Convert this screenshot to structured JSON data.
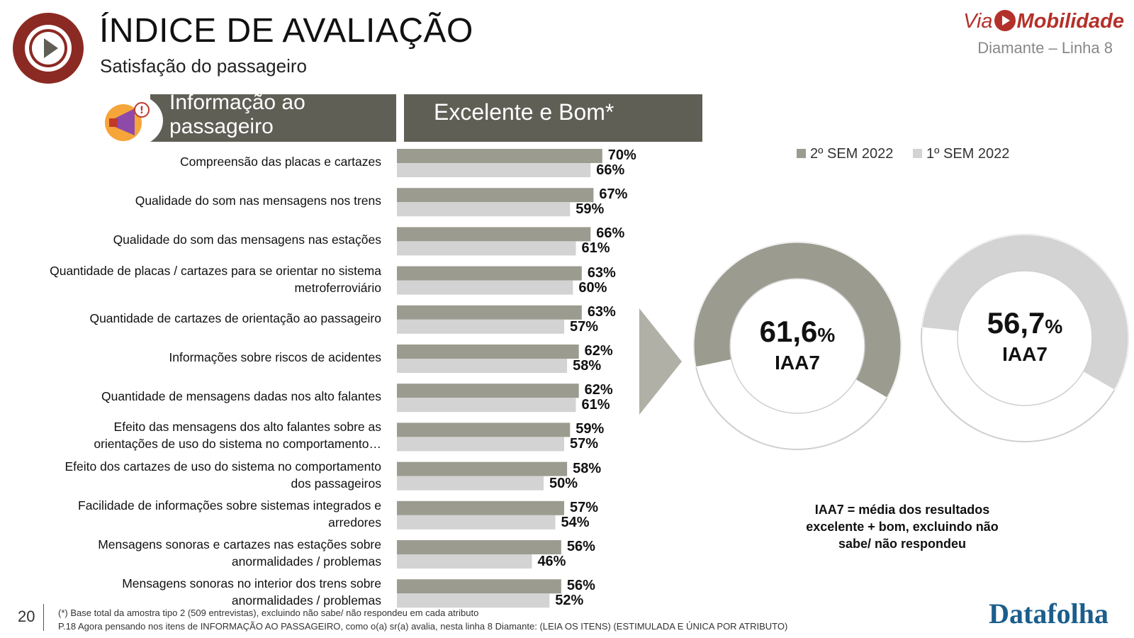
{
  "header": {
    "title": "ÍNDICE DE AVALIAÇÃO",
    "subtitle": "Satisfação do passageiro",
    "brand_prefix": "Via",
    "brand_name": "Mobilidade",
    "line_name": "Diamante – Linha 8"
  },
  "section": {
    "topic": "Informação ao passageiro",
    "measure": "Excelente e Bom*"
  },
  "legend": {
    "current": "2º SEM 2022",
    "previous": "1º SEM 2022"
  },
  "colors": {
    "current": "#9b9b8f",
    "previous": "#d3d3d3",
    "header_bg": "#5f5f56",
    "brand_red": "#b4302a"
  },
  "chart_data": [
    {
      "type": "bar",
      "orientation": "horizontal",
      "categories": [
        "Compreensão das placas e cartazes",
        "Qualidade do som nas mensagens nos trens",
        "Qualidade do som das mensagens nas estações",
        "Quantidade de placas / cartazes para se orientar no sistema metroferroviário",
        "Quantidade de cartazes de orientação ao passageiro",
        "Informações sobre riscos de acidentes",
        "Quantidade de mensagens dadas nos alto falantes",
        "Efeito das mensagens dos alto falantes sobre as orientações de uso do sistema no comportamento…",
        "Efeito dos cartazes de uso do sistema no comportamento dos passageiros",
        "Facilidade de informações sobre sistemas integrados e arredores",
        "Mensagens sonoras e cartazes nas estações sobre anormalidades / problemas",
        "Mensagens sonoras no interior dos trens sobre anormalidades / problemas"
      ],
      "series": [
        {
          "name": "2º SEM 2022",
          "values": [
            70,
            67,
            66,
            63,
            63,
            62,
            62,
            59,
            58,
            57,
            56,
            56
          ]
        },
        {
          "name": "1º SEM 2022",
          "values": [
            66,
            59,
            61,
            60,
            57,
            58,
            61,
            57,
            50,
            54,
            46,
            52
          ]
        }
      ],
      "value_labels": {
        "current": [
          "70%",
          "67%",
          "66%",
          "63%",
          "63%",
          "62%",
          "62%",
          "59%",
          "58%",
          "57%",
          "56%",
          "56%"
        ],
        "previous": [
          "66%",
          "59%",
          "61%",
          "60%",
          "57%",
          "58%",
          "61%",
          "57%",
          "50%",
          "54%",
          "46%",
          "52%"
        ]
      },
      "xlim": [
        0,
        100
      ]
    },
    {
      "type": "pie",
      "variant": "donut",
      "series_name": "2º SEM 2022",
      "value": 61.6,
      "value_text": "61,6",
      "unit": "%",
      "label": "IAA7"
    },
    {
      "type": "pie",
      "variant": "donut",
      "series_name": "1º SEM 2022",
      "value": 56.7,
      "value_text": "56,7",
      "unit": "%",
      "label": "IAA7"
    }
  ],
  "note": "IAA7 = média dos resultados excelente + bom, excluindo não sabe/ não respondeu",
  "footer": {
    "page_number": "20",
    "base_note": "(*) Base total da amostra tipo 2 (509 entrevistas), excluindo não sabe/ não respondeu em cada atributo",
    "question": "P.18 Agora pensando nos itens de INFORMAÇÃO AO PASSAGEIRO, como o(a) sr(a) avalia, nesta linha 8 Diamante: (LEIA OS ITENS) (ESTIMULADA E ÚNICA POR ATRIBUTO)",
    "source": "Datafolha"
  }
}
